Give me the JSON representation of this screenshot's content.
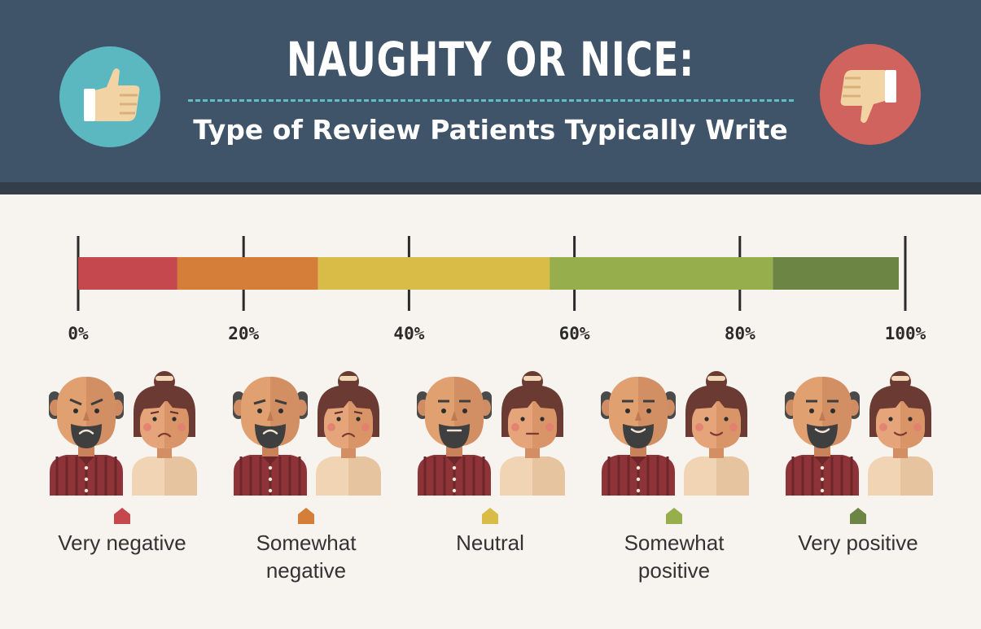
{
  "header": {
    "title": "NAUGHTY OR NICE:",
    "subtitle": "Type of Review Patients Typically Write"
  },
  "icons": {
    "left": "thumbs-up-icon",
    "right": "thumbs-down-icon"
  },
  "colors": {
    "header_bg": "#3f5369",
    "thumbs_up_circle": "#5bb8c0",
    "thumbs_down_circle": "#d1635f"
  },
  "chart_data": {
    "type": "bar",
    "orientation": "horizontal-stacked",
    "xlim": [
      0,
      100
    ],
    "ticks": [
      "0%",
      "20%",
      "40%",
      "60%",
      "80%",
      "100%"
    ],
    "tick_values": [
      0,
      20,
      40,
      60,
      80,
      100
    ],
    "series": [
      {
        "name": "Very negative",
        "value": 12,
        "color": "#c4484d"
      },
      {
        "name": "Somewhat negative",
        "value": 17,
        "color": "#d57e3a"
      },
      {
        "name": "Neutral",
        "value": 28,
        "color": "#d9bc47"
      },
      {
        "name": "Somewhat positive",
        "value": 27,
        "color": "#96ae4c"
      },
      {
        "name": "Very positive",
        "value": 16,
        "color": "#6c8544"
      }
    ]
  },
  "categories": [
    {
      "label_lines": [
        "Very negative"
      ],
      "mood": "angry"
    },
    {
      "label_lines": [
        "Somewhat",
        "negative"
      ],
      "mood": "frown"
    },
    {
      "label_lines": [
        "Neutral"
      ],
      "mood": "neutral"
    },
    {
      "label_lines": [
        "Somewhat",
        "positive"
      ],
      "mood": "smile"
    },
    {
      "label_lines": [
        "Very positive"
      ],
      "mood": "happy"
    }
  ]
}
